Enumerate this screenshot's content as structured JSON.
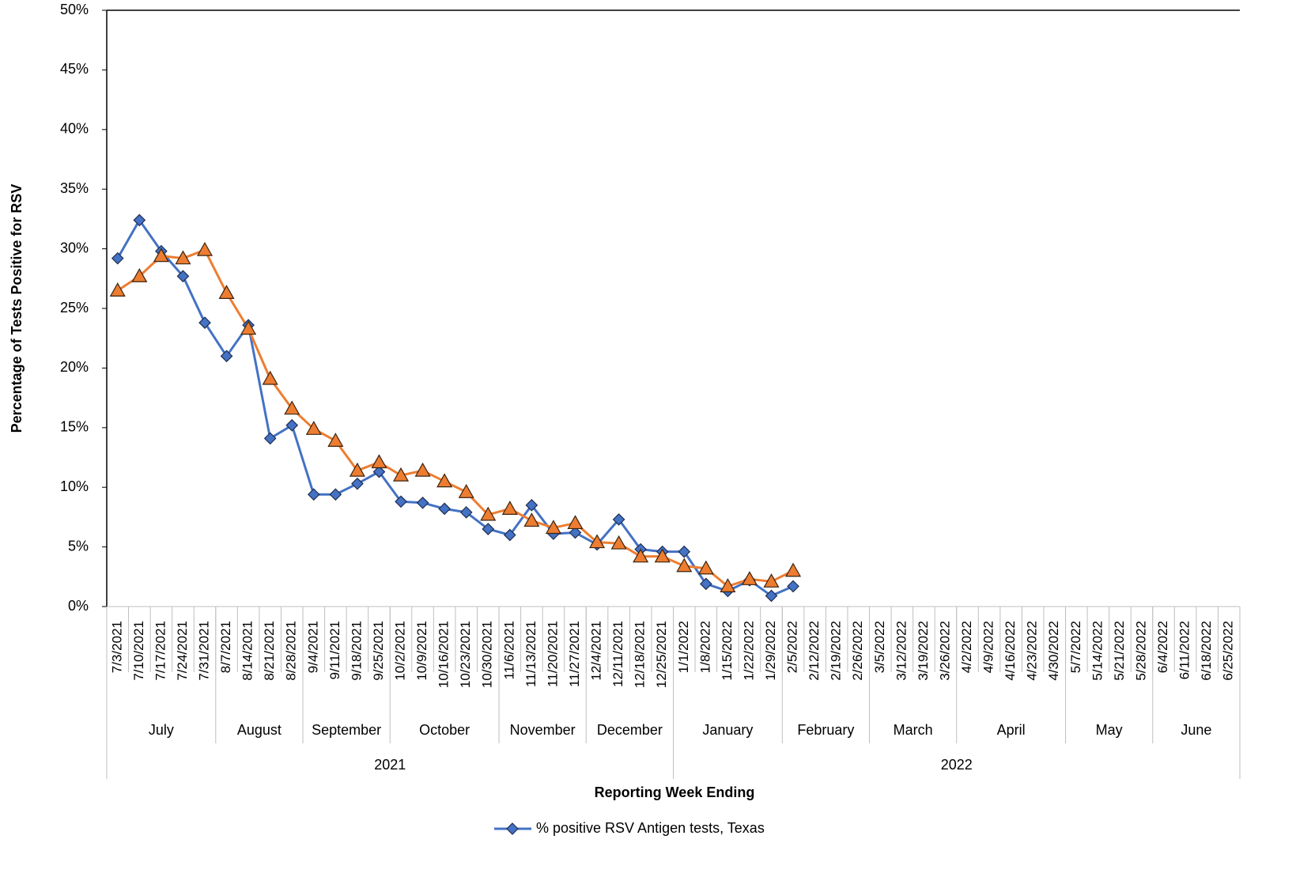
{
  "chart_data": {
    "type": "line",
    "y_label": "Percentage of Tests Positive for RSV",
    "x_label": "Reporting Week Ending",
    "categories": [
      "7/3/2021",
      "7/10/2021",
      "7/17/2021",
      "7/24/2021",
      "7/31/2021",
      "8/7/2021",
      "8/14/2021",
      "8/21/2021",
      "8/28/2021",
      "9/4/2021",
      "9/11/2021",
      "9/18/2021",
      "9/25/2021",
      "10/2/2021",
      "10/9/2021",
      "10/16/2021",
      "10/23/2021",
      "10/30/2021",
      "11/6/2021",
      "11/13/2021",
      "11/20/2021",
      "11/27/2021",
      "12/4/2021",
      "12/11/2021",
      "12/18/2021",
      "12/25/2021",
      "1/1/2022",
      "1/8/2022",
      "1/15/2022",
      "1/22/2022",
      "1/29/2022",
      "2/5/2022",
      "2/12/2022",
      "2/19/2022",
      "2/26/2022",
      "3/5/2022",
      "3/12/2022",
      "3/19/2022",
      "3/26/2022",
      "4/2/2022",
      "4/9/2022",
      "4/16/2022",
      "4/23/2022",
      "4/30/2022",
      "5/7/2022",
      "5/14/2022",
      "5/21/2022",
      "5/28/2022",
      "6/4/2022",
      "6/11/2022",
      "6/18/2022",
      "6/25/2022"
    ],
    "months": [
      "July",
      "August",
      "September",
      "October",
      "November",
      "December",
      "January",
      "February",
      "March",
      "April",
      "May",
      "June"
    ],
    "years": [
      "2021",
      "2022"
    ],
    "series": [
      {
        "name": "% positive RSV Antigen tests, Texas",
        "color": "#4472c4",
        "marker": "diamond",
        "values": [
          29.2,
          32.4,
          29.8,
          27.7,
          23.8,
          21.0,
          23.6,
          14.1,
          15.2,
          9.4,
          9.4,
          10.3,
          11.3,
          8.8,
          8.7,
          8.2,
          7.9,
          6.5,
          6.0,
          8.5,
          6.1,
          6.2,
          5.2,
          7.3,
          4.8,
          4.6,
          4.6,
          1.9,
          1.3,
          2.2,
          0.9,
          1.7,
          null,
          null,
          null,
          null,
          null,
          null,
          null,
          null,
          null,
          null,
          null,
          null,
          null,
          null,
          null,
          null,
          null,
          null,
          null,
          null
        ]
      },
      {
        "color": "#ed7d31",
        "marker": "triangle",
        "values": [
          26.5,
          27.7,
          29.4,
          29.2,
          29.9,
          26.3,
          23.3,
          19.1,
          16.6,
          14.9,
          13.9,
          11.4,
          12.1,
          11.0,
          11.4,
          10.5,
          9.6,
          7.7,
          8.2,
          7.2,
          6.6,
          7.0,
          5.4,
          5.3,
          4.2,
          4.2,
          3.4,
          3.2,
          1.7,
          2.3,
          2.1,
          3.0,
          null,
          null,
          null,
          null,
          null,
          null,
          null,
          null,
          null,
          null,
          null,
          null,
          null,
          null,
          null,
          null,
          null,
          null,
          null,
          null
        ]
      }
    ],
    "ylim": [
      0,
      50
    ],
    "yticks": [
      {
        "value": 0,
        "label": "0%"
      },
      {
        "value": 5,
        "label": "5%"
      },
      {
        "value": 10,
        "label": "10%"
      },
      {
        "value": 15,
        "label": "15%"
      },
      {
        "value": 20,
        "label": "20%"
      },
      {
        "value": 25,
        "label": "25%"
      },
      {
        "value": 30,
        "label": "30%"
      },
      {
        "value": 35,
        "label": "35%"
      },
      {
        "value": 40,
        "label": "40%"
      },
      {
        "value": 45,
        "label": "45%"
      },
      {
        "value": 50,
        "label": "50%"
      }
    ],
    "grid": false,
    "legend": "bottom"
  }
}
